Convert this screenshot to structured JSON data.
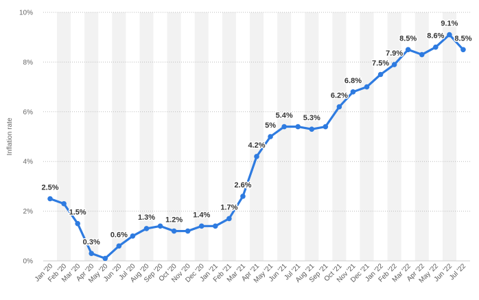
{
  "chart_data": {
    "type": "line",
    "title": "",
    "xlabel": "",
    "ylabel": "Inflation rate",
    "ylim": [
      0,
      10
    ],
    "y_ticks": [
      "0%",
      "2%",
      "4%",
      "6%",
      "8%",
      "10%"
    ],
    "grid": true,
    "color": "#2e7be0",
    "categories": [
      "Jan '20",
      "Feb '20",
      "Mar '20",
      "Apr '20",
      "May '20",
      "Jun '20",
      "Jul '20",
      "Aug '20",
      "Sep '20",
      "Oct '20",
      "Nov '20",
      "Dec '20",
      "Jan '21",
      "Feb '21",
      "Mar '21",
      "Apr '21",
      "May '21",
      "Jun '21",
      "Jul '21",
      "Aug '21",
      "Sep '21",
      "Oct '21",
      "Nov '21",
      "Dec '21",
      "Jan '22",
      "Feb '22",
      "Mar '22",
      "Apr '22",
      "May '22",
      "Jun '22",
      "Jul '22"
    ],
    "values": [
      2.5,
      2.3,
      1.5,
      0.3,
      0.1,
      0.6,
      1.0,
      1.3,
      1.4,
      1.2,
      1.2,
      1.4,
      1.4,
      1.7,
      2.6,
      4.2,
      5.0,
      5.4,
      5.4,
      5.3,
      5.4,
      6.2,
      6.8,
      7.0,
      7.5,
      7.9,
      8.5,
      8.3,
      8.6,
      9.1,
      8.5
    ],
    "data_labels": [
      "2.5%",
      "",
      "1.5%",
      "0.3%",
      "",
      "0.6%",
      "",
      "1.3%",
      "",
      "1.2%",
      "",
      "1.4%",
      "",
      "1.7%",
      "2.6%",
      "4.2%",
      "5%",
      "5.4%",
      "",
      "5.3%",
      "",
      "6.2%",
      "6.8%",
      "",
      "7.5%",
      "7.9%",
      "8.5%",
      "",
      "8.6%",
      "9.1%",
      "8.5%"
    ]
  }
}
